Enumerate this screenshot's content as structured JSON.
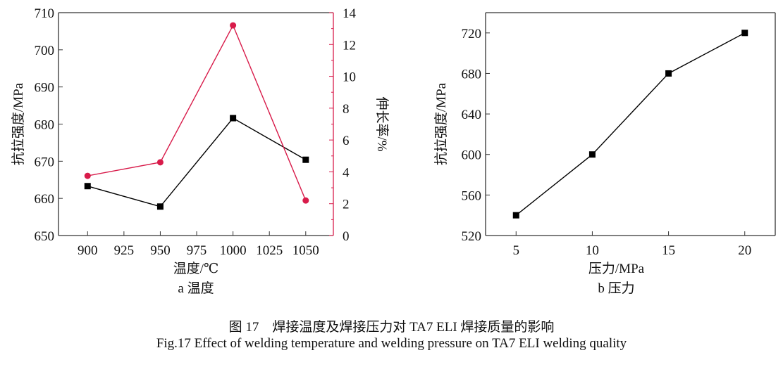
{
  "chart_data": [
    {
      "type": "line",
      "panel_label": "a 温度",
      "xlabel": "温度/℃",
      "ylabel": "抗拉强度/MPa",
      "y2label": "伸长率/%",
      "x": [
        900,
        950,
        1000,
        1050
      ],
      "xticks": [
        900,
        925,
        950,
        975,
        1000,
        1025,
        1050
      ],
      "xlim": [
        880,
        1069
      ],
      "ylim": [
        650,
        710
      ],
      "yticks": [
        650,
        660,
        670,
        680,
        690,
        700,
        710
      ],
      "y2lim": [
        0,
        14
      ],
      "y2ticks": [
        0,
        2,
        4,
        6,
        8,
        10,
        12,
        14
      ],
      "grid": false,
      "series": [
        {
          "axis": "left",
          "marker": "square",
          "color": "#000000",
          "values": [
            663.3,
            657.8,
            681.6,
            670.4
          ]
        },
        {
          "axis": "right",
          "marker": "circle",
          "color": "#d81b4a",
          "values": [
            3.75,
            4.6,
            13.2,
            2.2
          ]
        }
      ]
    },
    {
      "type": "line",
      "panel_label": "b 压力",
      "xlabel": "压力/MPa",
      "ylabel": "抗拉强度/MPa",
      "x": [
        5,
        10,
        15,
        20
      ],
      "xticks": [
        5,
        10,
        15,
        20
      ],
      "xlim": [
        3,
        22
      ],
      "ylim": [
        520,
        740
      ],
      "yticks": [
        520,
        560,
        600,
        640,
        680,
        720
      ],
      "grid": false,
      "series": [
        {
          "axis": "left",
          "marker": "square",
          "color": "#000000",
          "values": [
            540,
            600,
            680,
            720
          ]
        }
      ]
    }
  ],
  "caption": {
    "cn": "图 17　焊接温度及焊接压力对 TA7 ELI 焊接质量的影响",
    "en": "Fig.17 Effect of welding temperature and welding pressure on TA7 ELI welding quality"
  }
}
